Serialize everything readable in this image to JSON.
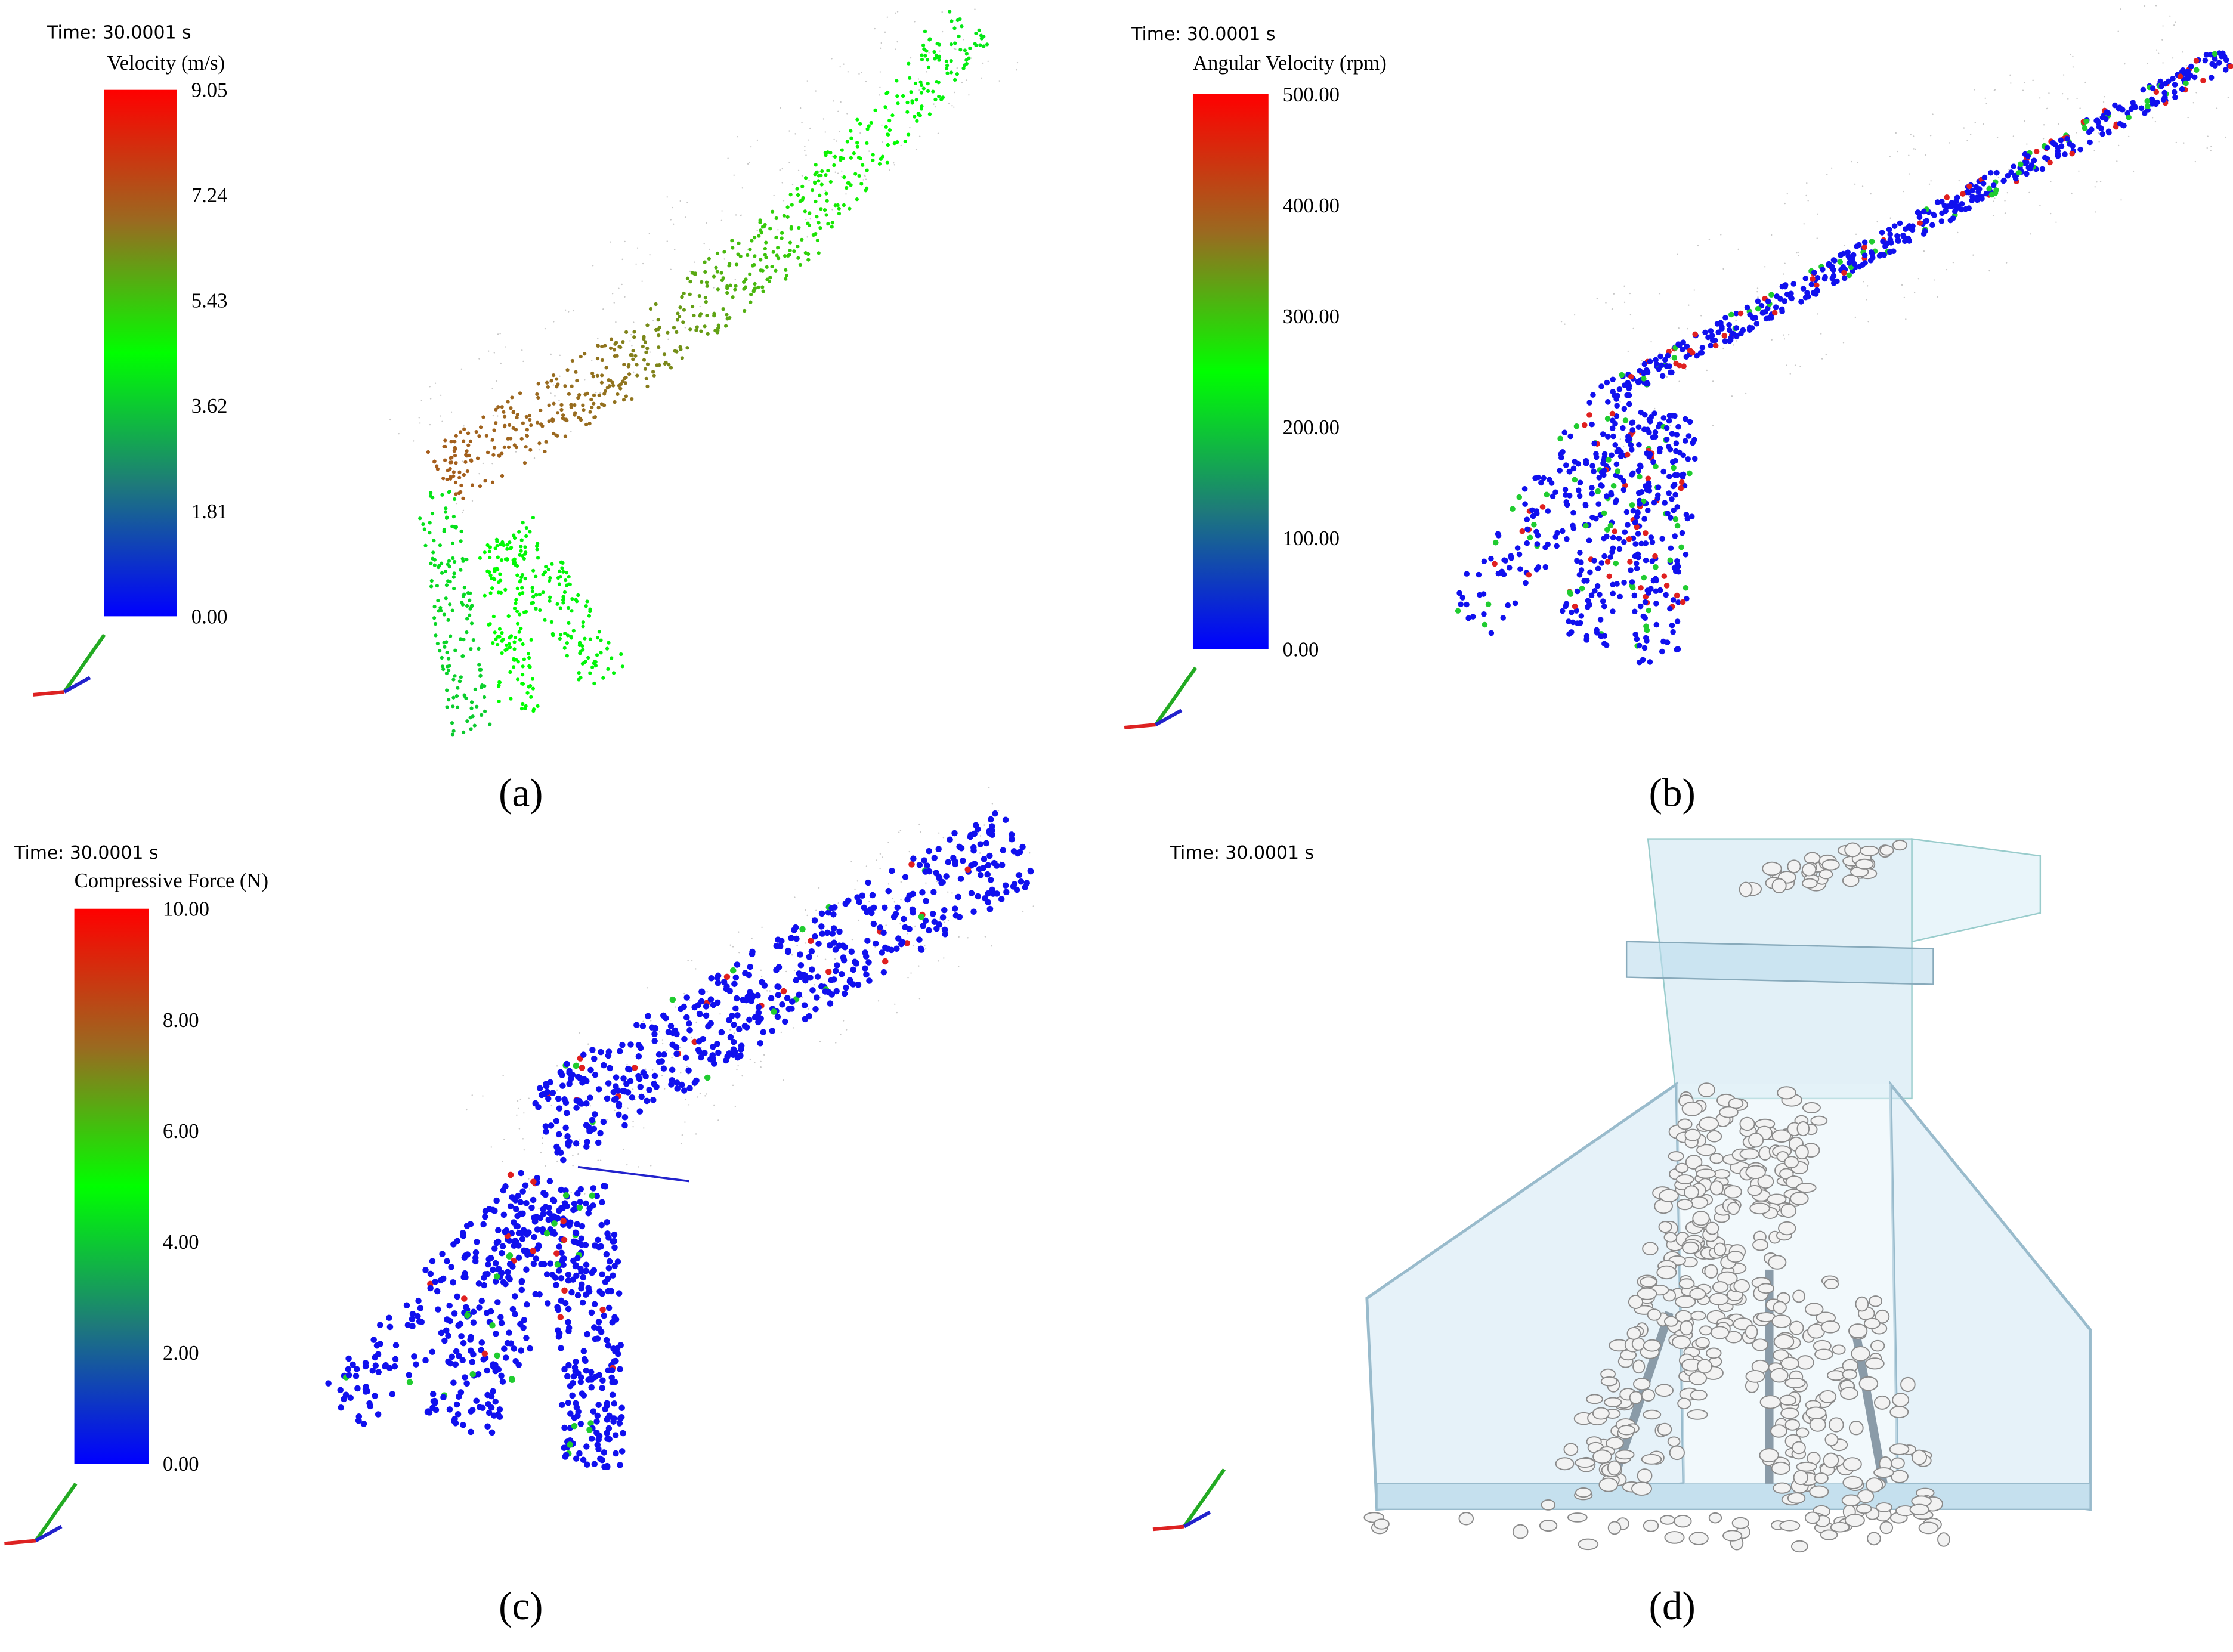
{
  "panels": [
    {
      "time": "Time: 30.0001 s",
      "legend_title": "Velocity (m/s)",
      "legend_ticks": [
        "9.05",
        "7.24",
        "5.43",
        "3.62",
        "1.81",
        "0.00"
      ],
      "caption": "(a)"
    },
    {
      "time": "Time: 30.0001 s",
      "legend_title": "Angular Velocity (rpm)",
      "legend_ticks": [
        "500.00",
        "400.00",
        "300.00",
        "200.00",
        "100.00",
        "0.00"
      ],
      "caption": "(b)"
    },
    {
      "time": "Time: 30.0001 s",
      "legend_title": "Compressive Force (N)",
      "legend_ticks": [
        "10.00",
        "8.00",
        "6.00",
        "4.00",
        "2.00",
        "0.00"
      ],
      "caption": "(c)"
    },
    {
      "time": "Time: 30.0001 s",
      "caption": "(d)"
    }
  ]
}
